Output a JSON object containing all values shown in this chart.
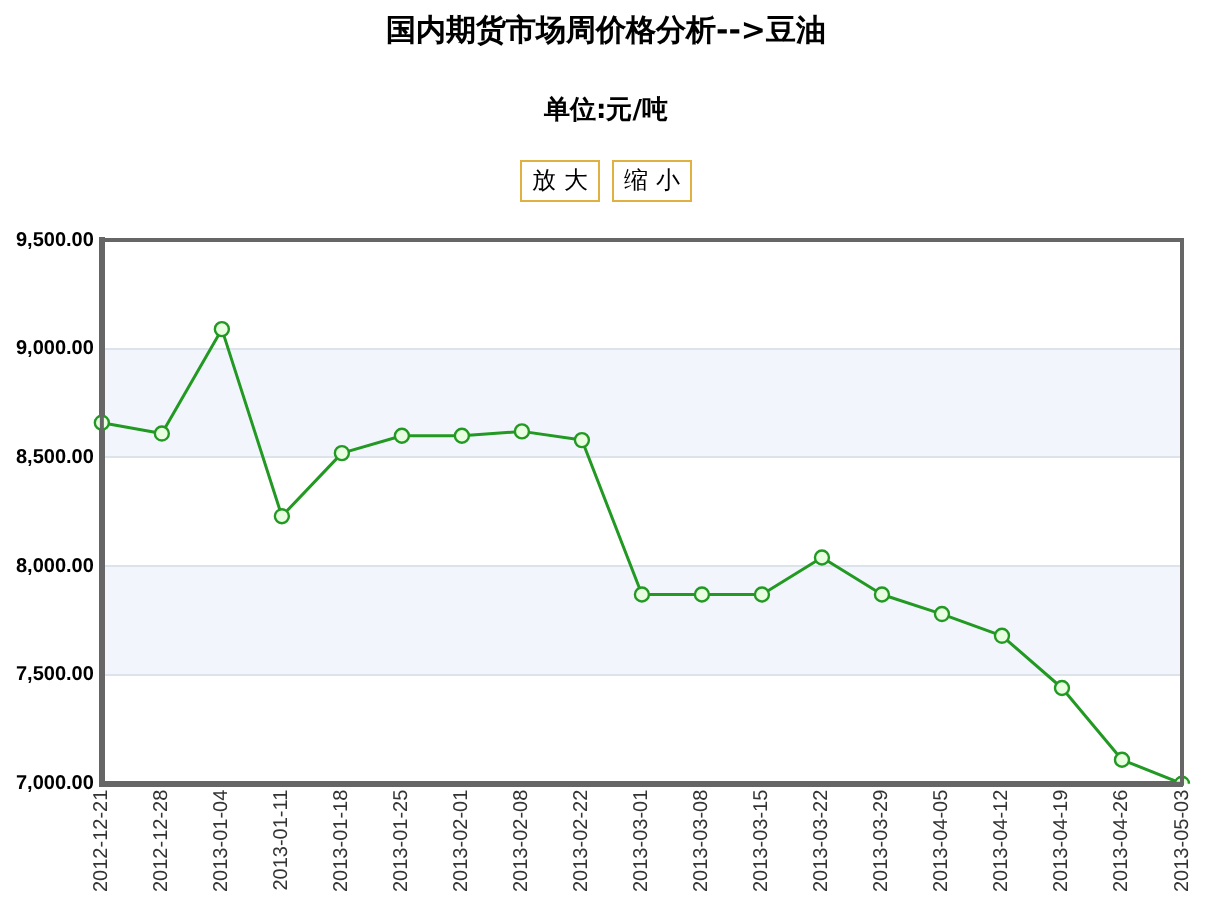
{
  "chart_data": {
    "type": "line",
    "title": "国内期货市场周价格分析-->豆油",
    "subtitle": "单位:元/吨",
    "annotations": [
      "放 大",
      "缩 小"
    ],
    "categories": [
      "2012-12-21",
      "2012-12-28",
      "2013-01-04",
      "2013-01-11",
      "2013-01-18",
      "2013-01-25",
      "2013-02-01",
      "2013-02-08",
      "2013-02-22",
      "2013-03-01",
      "2013-03-08",
      "2013-03-15",
      "2013-03-22",
      "2013-03-29",
      "2013-04-05",
      "2013-04-12",
      "2013-04-19",
      "2013-04-26",
      "2013-05-03"
    ],
    "series": [
      {
        "color": "#229922",
        "values": [
          8660,
          8610,
          9090,
          8230,
          8520,
          8600,
          8600,
          8620,
          8580,
          7870,
          7870,
          7870,
          8040,
          7870,
          7780,
          7680,
          7440,
          7110,
          7000
        ]
      }
    ],
    "ylim": [
      7000,
      9500
    ],
    "yticks": [
      {
        "value": 7000,
        "label": "7,000.00"
      },
      {
        "value": 7500,
        "label": "7,500.00"
      },
      {
        "value": 8000,
        "label": "8,000.00"
      },
      {
        "value": 8500,
        "label": "8,500.00"
      },
      {
        "value": 9000,
        "label": "9,000.00"
      },
      {
        "value": 9500,
        "label": "9,500.00"
      }
    ],
    "grid": "y",
    "marker": "circle",
    "legend": false
  }
}
